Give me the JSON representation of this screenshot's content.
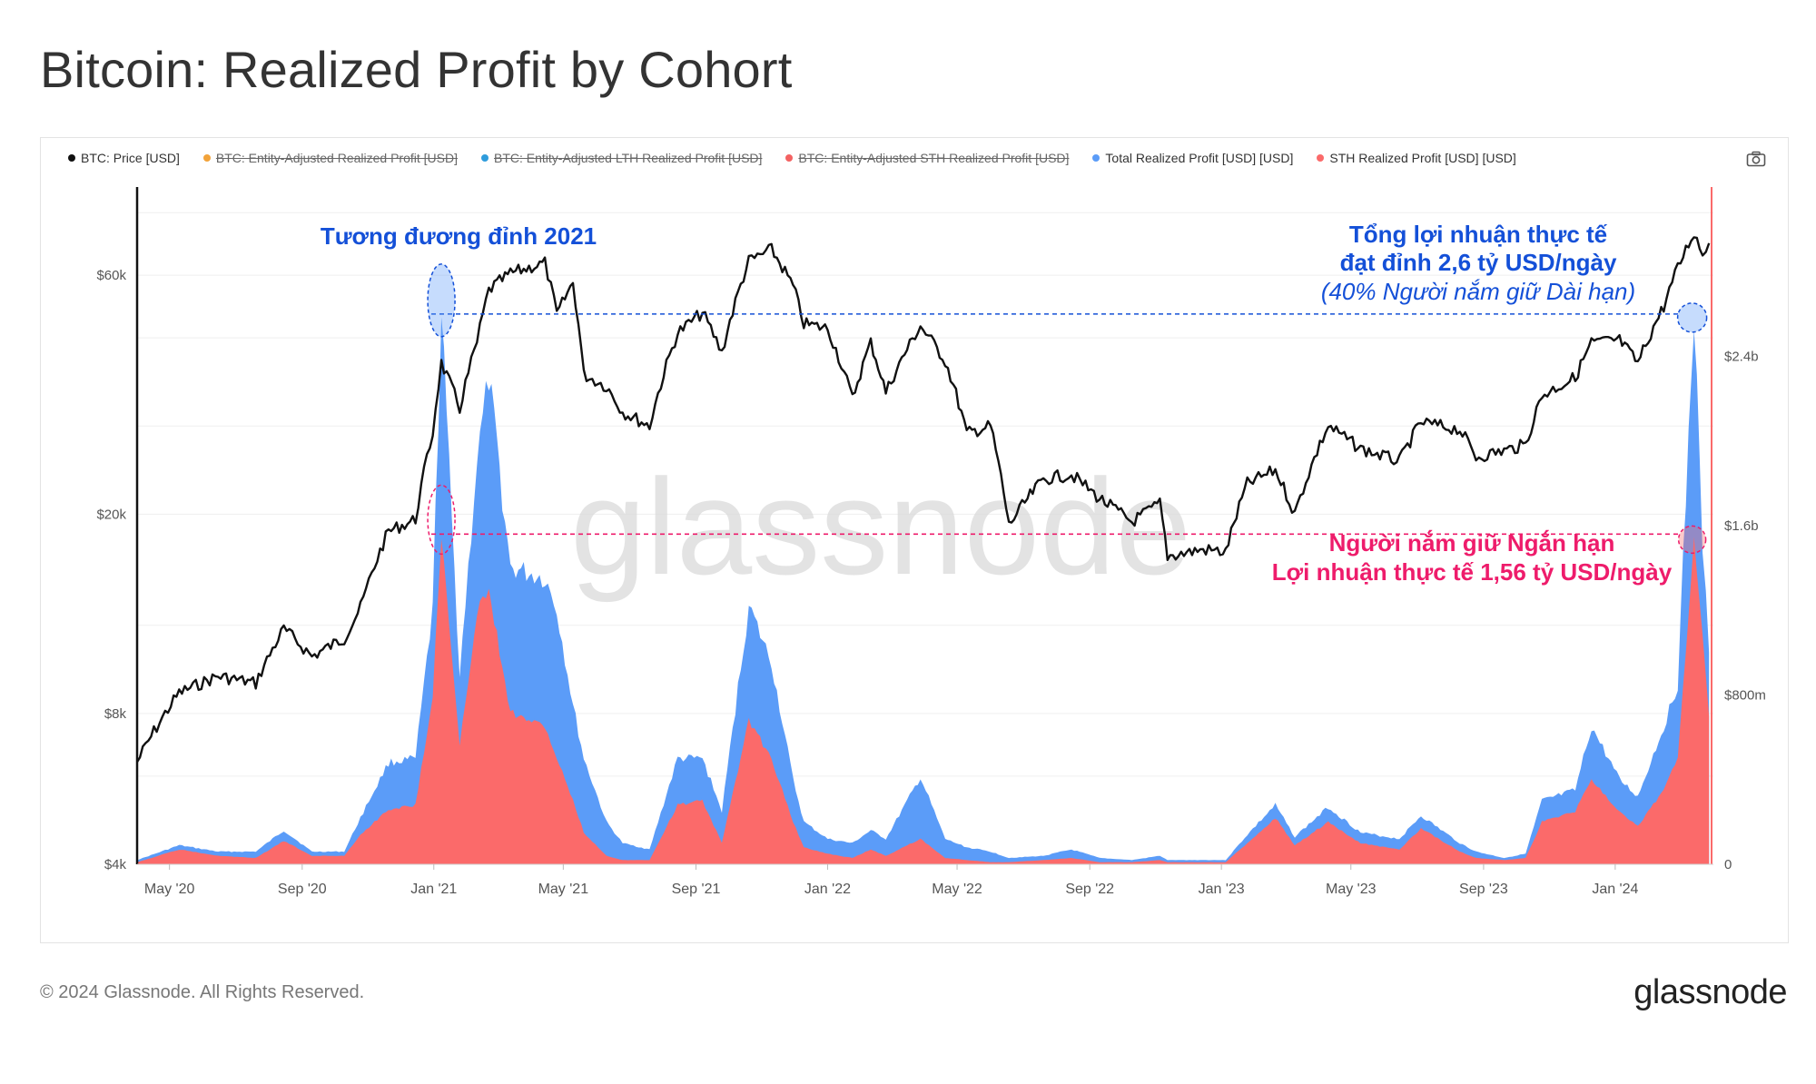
{
  "page": {
    "title": "Bitcoin: Realized Profit by Cohort"
  },
  "legend": [
    {
      "label": "BTC: Price [USD]",
      "color": "#111111",
      "active": true
    },
    {
      "label": "BTC: Entity-Adjusted Realized Profit [USD]",
      "color": "#f2a33a",
      "active": false
    },
    {
      "label": "BTC: Entity-Adjusted LTH Realized Profit [USD]",
      "color": "#2f9cdc",
      "active": false
    },
    {
      "label": "BTC: Entity-Adjusted STH Realized Profit [USD]",
      "color": "#f36262",
      "active": false
    },
    {
      "label": "Total Realized Profit [USD] [USD]",
      "color": "#5b9cf8",
      "active": true
    },
    {
      "label": "STH Realized Profit [USD] [USD]",
      "color": "#fb6a6a",
      "active": true
    }
  ],
  "icons": {
    "camera": "camera-icon"
  },
  "watermark": "glassnode",
  "footer": {
    "copyright": "© 2024 Glassnode. All Rights Reserved.",
    "logo": "glassnode"
  },
  "chart_data": {
    "type": "area",
    "x_ticks": [
      "May '20",
      "Sep '20",
      "Jan '21",
      "May '21",
      "Sep '21",
      "Jan '22",
      "May '22",
      "Sep '22",
      "Jan '23",
      "May '23",
      "Sep '23",
      "Jan '24"
    ],
    "y_left": {
      "scale": "log",
      "ticks": [
        "$4k",
        "$8k",
        "$20k",
        "$60k"
      ],
      "tick_values": [
        4000,
        8000,
        20000,
        60000
      ],
      "range": [
        4000,
        90000
      ]
    },
    "y_right": {
      "scale": "linear",
      "ticks": [
        "0",
        "$800m",
        "$1.6b",
        "$2.4b"
      ],
      "tick_values": [
        0,
        800000000,
        1600000000,
        2400000000
      ],
      "range": [
        0,
        3200000000
      ]
    },
    "colors": {
      "price": "#111111",
      "total": "#5b9cf8",
      "sth": "#fb6a6a",
      "blue_annotation": "#1450d8",
      "pink_annotation": "#ee1c6b"
    },
    "series": [
      {
        "name": "BTC: Price [USD]",
        "axis": "left",
        "points": [
          [
            "2020-04-01",
            6400
          ],
          [
            "2020-05-10",
            8800
          ],
          [
            "2020-06-15",
            9500
          ],
          [
            "2020-07-20",
            9200
          ],
          [
            "2020-08-15",
            11800
          ],
          [
            "2020-09-10",
            10400
          ],
          [
            "2020-10-10",
            11300
          ],
          [
            "2020-10-25",
            13000
          ],
          [
            "2020-11-20",
            18500
          ],
          [
            "2020-12-15",
            19500
          ],
          [
            "2020-12-31",
            29000
          ],
          [
            "2021-01-08",
            40000
          ],
          [
            "2021-01-25",
            32500
          ],
          [
            "2021-02-10",
            44000
          ],
          [
            "2021-02-21",
            56000
          ],
          [
            "2021-03-13",
            60500
          ],
          [
            "2021-04-14",
            63500
          ],
          [
            "2021-04-25",
            50000
          ],
          [
            "2021-05-10",
            58000
          ],
          [
            "2021-05-20",
            38000
          ],
          [
            "2021-06-10",
            36000
          ],
          [
            "2021-06-25",
            32000
          ],
          [
            "2021-07-20",
            30000
          ],
          [
            "2021-08-15",
            46000
          ],
          [
            "2021-09-07",
            50500
          ],
          [
            "2021-09-25",
            42000
          ],
          [
            "2021-10-20",
            64000
          ],
          [
            "2021-11-10",
            67500
          ],
          [
            "2021-11-30",
            57000
          ],
          [
            "2021-12-10",
            48000
          ],
          [
            "2022-01-01",
            47000
          ],
          [
            "2022-01-24",
            34000
          ],
          [
            "2022-02-10",
            44000
          ],
          [
            "2022-02-24",
            35000
          ],
          [
            "2022-03-28",
            47500
          ],
          [
            "2022-04-20",
            40500
          ],
          [
            "2022-05-10",
            29000
          ],
          [
            "2022-06-01",
            30000
          ],
          [
            "2022-06-18",
            19000
          ],
          [
            "2022-07-20",
            23500
          ],
          [
            "2022-08-15",
            24000
          ],
          [
            "2022-09-10",
            21500
          ],
          [
            "2022-10-10",
            19300
          ],
          [
            "2022-11-05",
            21000
          ],
          [
            "2022-11-12",
            16500
          ],
          [
            "2022-12-15",
            17000
          ],
          [
            "2023-01-05",
            16800
          ],
          [
            "2023-01-25",
            23000
          ],
          [
            "2023-02-20",
            24500
          ],
          [
            "2023-03-10",
            20000
          ],
          [
            "2023-04-10",
            30000
          ],
          [
            "2023-05-10",
            27000
          ],
          [
            "2023-06-15",
            25500
          ],
          [
            "2023-07-05",
            30500
          ],
          [
            "2023-08-10",
            29500
          ],
          [
            "2023-08-25",
            26000
          ],
          [
            "2023-09-20",
            26800
          ],
          [
            "2023-10-10",
            27500
          ],
          [
            "2023-10-25",
            34500
          ],
          [
            "2023-11-25",
            37500
          ],
          [
            "2023-12-10",
            44000
          ],
          [
            "2024-01-05",
            44500
          ],
          [
            "2024-01-22",
            40000
          ],
          [
            "2024-02-15",
            52000
          ],
          [
            "2024-02-28",
            62000
          ],
          [
            "2024-03-14",
            73000
          ],
          [
            "2024-03-22",
            66000
          ],
          [
            "2024-03-28",
            69500
          ]
        ]
      },
      {
        "name": "Total Realized Profit [USD] [USD]",
        "axis": "right",
        "points": [
          [
            "2020-04-01",
            0.02
          ],
          [
            "2020-05-10",
            0.09
          ],
          [
            "2020-06-15",
            0.06
          ],
          [
            "2020-07-20",
            0.06
          ],
          [
            "2020-08-15",
            0.16
          ],
          [
            "2020-09-10",
            0.06
          ],
          [
            "2020-10-10",
            0.06
          ],
          [
            "2020-10-25",
            0.22
          ],
          [
            "2020-11-20",
            0.48
          ],
          [
            "2020-12-15",
            0.5
          ],
          [
            "2020-12-31",
            1.2
          ],
          [
            "2021-01-08",
            2.6
          ],
          [
            "2021-01-25",
            0.9
          ],
          [
            "2021-02-10",
            1.9
          ],
          [
            "2021-02-21",
            2.3
          ],
          [
            "2021-03-13",
            1.4
          ],
          [
            "2021-04-14",
            1.35
          ],
          [
            "2021-04-25",
            1.2
          ],
          [
            "2021-05-10",
            0.75
          ],
          [
            "2021-05-20",
            0.5
          ],
          [
            "2021-06-10",
            0.2
          ],
          [
            "2021-06-25",
            0.1
          ],
          [
            "2021-07-20",
            0.07
          ],
          [
            "2021-08-15",
            0.5
          ],
          [
            "2021-09-07",
            0.5
          ],
          [
            "2021-09-25",
            0.25
          ],
          [
            "2021-10-20",
            1.22
          ],
          [
            "2021-11-10",
            0.95
          ],
          [
            "2021-11-30",
            0.4
          ],
          [
            "2021-12-10",
            0.2
          ],
          [
            "2022-01-01",
            0.12
          ],
          [
            "2022-01-24",
            0.1
          ],
          [
            "2022-02-10",
            0.16
          ],
          [
            "2022-02-24",
            0.12
          ],
          [
            "2022-03-28",
            0.41
          ],
          [
            "2022-04-20",
            0.12
          ],
          [
            "2022-05-10",
            0.08
          ],
          [
            "2022-06-01",
            0.06
          ],
          [
            "2022-06-18",
            0.03
          ],
          [
            "2022-07-20",
            0.04
          ],
          [
            "2022-08-15",
            0.07
          ],
          [
            "2022-09-10",
            0.03
          ],
          [
            "2022-10-10",
            0.02
          ],
          [
            "2022-11-05",
            0.04
          ],
          [
            "2022-11-12",
            0.02
          ],
          [
            "2022-12-15",
            0.02
          ],
          [
            "2023-01-05",
            0.02
          ],
          [
            "2023-01-25",
            0.14
          ],
          [
            "2023-02-20",
            0.28
          ],
          [
            "2023-03-10",
            0.13
          ],
          [
            "2023-04-10",
            0.27
          ],
          [
            "2023-05-10",
            0.15
          ],
          [
            "2023-06-15",
            0.12
          ],
          [
            "2023-07-05",
            0.23
          ],
          [
            "2023-08-10",
            0.1
          ],
          [
            "2023-08-25",
            0.06
          ],
          [
            "2023-09-20",
            0.03
          ],
          [
            "2023-10-10",
            0.05
          ],
          [
            "2023-10-25",
            0.3
          ],
          [
            "2023-11-25",
            0.35
          ],
          [
            "2023-12-10",
            0.65
          ],
          [
            "2024-01-05",
            0.4
          ],
          [
            "2024-01-22",
            0.32
          ],
          [
            "2024-02-15",
            0.65
          ],
          [
            "2024-02-28",
            0.85
          ],
          [
            "2024-03-14",
            2.6
          ],
          [
            "2024-03-22",
            1.5
          ],
          [
            "2024-03-28",
            1.0
          ]
        ]
      },
      {
        "name": "STH Realized Profit [USD] [USD]",
        "axis": "right",
        "points": [
          [
            "2020-04-01",
            0.01
          ],
          [
            "2020-05-10",
            0.07
          ],
          [
            "2020-06-15",
            0.04
          ],
          [
            "2020-07-20",
            0.03
          ],
          [
            "2020-08-15",
            0.11
          ],
          [
            "2020-09-10",
            0.04
          ],
          [
            "2020-10-10",
            0.04
          ],
          [
            "2020-10-25",
            0.14
          ],
          [
            "2020-11-20",
            0.26
          ],
          [
            "2020-12-15",
            0.28
          ],
          [
            "2020-12-31",
            0.8
          ],
          [
            "2021-01-08",
            1.56
          ],
          [
            "2021-01-25",
            0.55
          ],
          [
            "2021-02-10",
            1.2
          ],
          [
            "2021-02-21",
            1.3
          ],
          [
            "2021-03-13",
            0.72
          ],
          [
            "2021-04-14",
            0.65
          ],
          [
            "2021-04-25",
            0.5
          ],
          [
            "2021-05-10",
            0.3
          ],
          [
            "2021-05-20",
            0.15
          ],
          [
            "2021-06-10",
            0.04
          ],
          [
            "2021-06-25",
            0.02
          ],
          [
            "2021-07-20",
            0.02
          ],
          [
            "2021-08-15",
            0.28
          ],
          [
            "2021-09-07",
            0.3
          ],
          [
            "2021-09-25",
            0.1
          ],
          [
            "2021-10-20",
            0.68
          ],
          [
            "2021-11-10",
            0.5
          ],
          [
            "2021-11-30",
            0.2
          ],
          [
            "2021-12-10",
            0.08
          ],
          [
            "2022-01-01",
            0.05
          ],
          [
            "2022-01-24",
            0.03
          ],
          [
            "2022-02-10",
            0.07
          ],
          [
            "2022-02-24",
            0.04
          ],
          [
            "2022-03-28",
            0.12
          ],
          [
            "2022-04-20",
            0.03
          ],
          [
            "2022-05-10",
            0.02
          ],
          [
            "2022-06-01",
            0.01
          ],
          [
            "2022-06-18",
            0.01
          ],
          [
            "2022-07-20",
            0.02
          ],
          [
            "2022-08-15",
            0.03
          ],
          [
            "2022-09-10",
            0.01
          ],
          [
            "2022-10-10",
            0.01
          ],
          [
            "2022-11-05",
            0.02
          ],
          [
            "2022-11-12",
            0.01
          ],
          [
            "2022-12-15",
            0.01
          ],
          [
            "2023-01-05",
            0.01
          ],
          [
            "2023-01-25",
            0.1
          ],
          [
            "2023-02-20",
            0.22
          ],
          [
            "2023-03-10",
            0.09
          ],
          [
            "2023-04-10",
            0.2
          ],
          [
            "2023-05-10",
            0.1
          ],
          [
            "2023-06-15",
            0.07
          ],
          [
            "2023-07-05",
            0.17
          ],
          [
            "2023-08-10",
            0.06
          ],
          [
            "2023-08-25",
            0.03
          ],
          [
            "2023-09-20",
            0.02
          ],
          [
            "2023-10-10",
            0.03
          ],
          [
            "2023-10-25",
            0.2
          ],
          [
            "2023-11-25",
            0.25
          ],
          [
            "2023-12-10",
            0.4
          ],
          [
            "2024-01-05",
            0.25
          ],
          [
            "2024-01-22",
            0.18
          ],
          [
            "2024-02-15",
            0.35
          ],
          [
            "2024-02-28",
            0.5
          ],
          [
            "2024-03-14",
            1.56
          ],
          [
            "2024-03-22",
            1.1
          ],
          [
            "2024-03-28",
            0.7
          ]
        ]
      }
    ],
    "annotations": [
      {
        "id": "peak-2021",
        "lines": [
          "Tương đương đỉnh 2021"
        ],
        "color": "#1450d8"
      },
      {
        "id": "total-peak",
        "lines": [
          "Tổng lợi nhuận thực tế",
          "đạt đỉnh 2,6 tỷ USD/ngày",
          "(40% Người nắm giữ Dài hạn)"
        ],
        "color": "#1450d8"
      },
      {
        "id": "sth-peak",
        "lines": [
          "Người nắm giữ Ngắn hạn",
          "Lợi nhuận thực tế 1,56 tỷ USD/ngày"
        ],
        "color": "#ee1c6b"
      }
    ],
    "reference_lines": [
      {
        "axis": "right",
        "value": 2.6,
        "unit": "billion USD",
        "color": "#1450d8"
      },
      {
        "axis": "right",
        "value": 1.56,
        "unit": "billion USD",
        "color": "#ee1c6b"
      }
    ],
    "grid": true,
    "legend_position": "top-left"
  }
}
